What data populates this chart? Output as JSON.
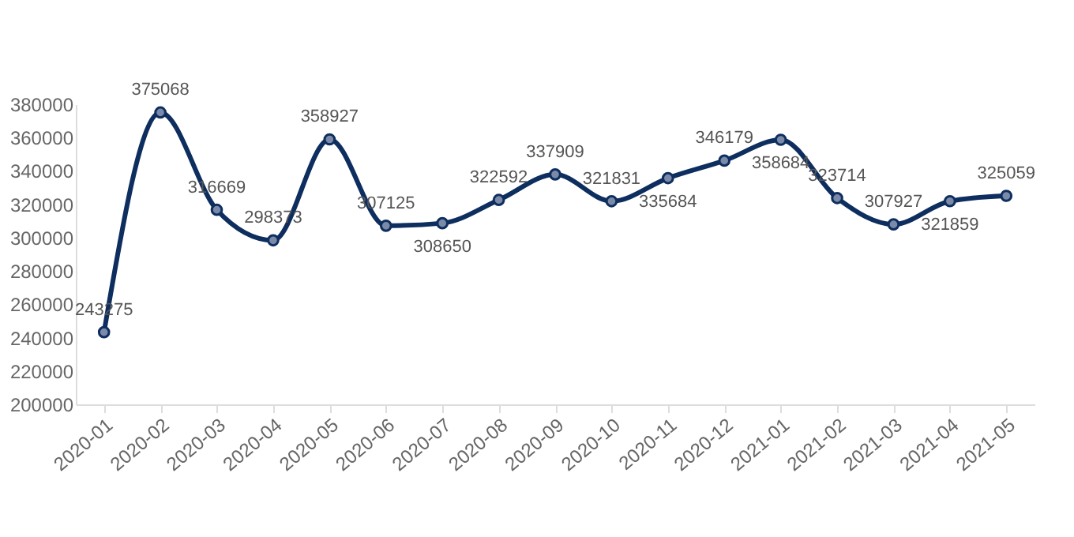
{
  "chart_data": {
    "type": "line",
    "categories": [
      "2020-01",
      "2020-02",
      "2020-03",
      "2020-04",
      "2020-05",
      "2020-06",
      "2020-07",
      "2020-08",
      "2020-09",
      "2020-10",
      "2020-11",
      "2020-12",
      "2021-01",
      "2021-02",
      "2021-03",
      "2021-04",
      "2021-05"
    ],
    "series": [
      {
        "color": "#0d2e5e",
        "values": [
          243275,
          375068,
          316669,
          298373,
          358927,
          307125,
          308650,
          322592,
          337909,
          321831,
          335684,
          346179,
          358684,
          323714,
          307927,
          321859,
          325059
        ]
      }
    ],
    "ylim": [
      200000,
      380000
    ],
    "yticks": [
      200000,
      220000,
      240000,
      260000,
      280000,
      300000,
      320000,
      340000,
      360000,
      380000
    ],
    "grid": false,
    "marker": "circle",
    "line_style": "solid",
    "data_labels": true
  }
}
